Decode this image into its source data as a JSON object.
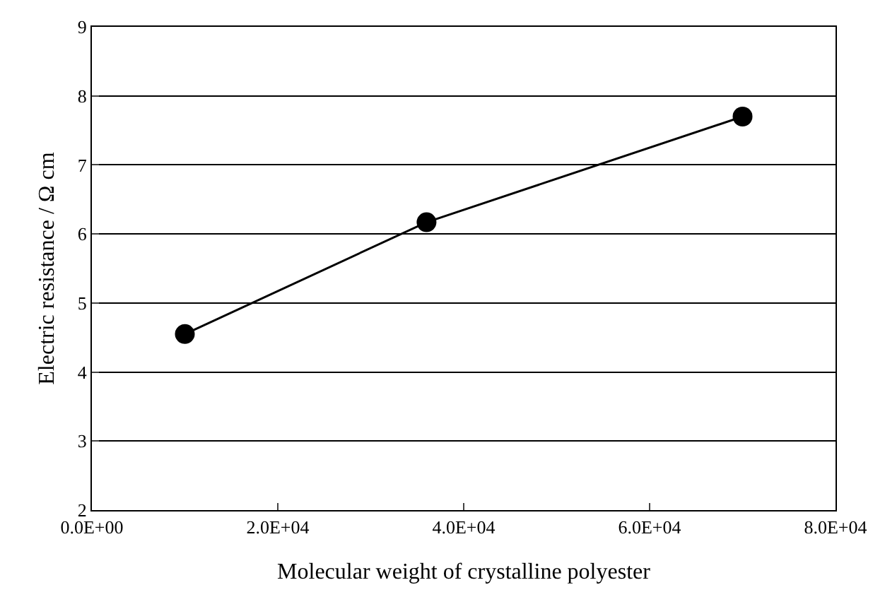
{
  "chart_data": {
    "type": "line",
    "xlabel": "Molecular weight of crystalline polyester",
    "ylabel": "Electric resistance / Ω cm",
    "x": [
      10000,
      36000,
      70000
    ],
    "series": [
      {
        "color": "#000000",
        "values": [
          4.55,
          6.17,
          7.7
        ]
      }
    ],
    "xlim": [
      0,
      80000
    ],
    "xticks": [
      {
        "value": 0,
        "label": "0.0E+00"
      },
      {
        "value": 20000,
        "label": "2.0E+04"
      },
      {
        "value": 40000,
        "label": "4.0E+04"
      },
      {
        "value": 60000,
        "label": "6.0E+04"
      },
      {
        "value": 80000,
        "label": "8.0E+04"
      }
    ],
    "ylim": [
      2,
      9
    ],
    "yticks": [
      2,
      3,
      4,
      5,
      6,
      7,
      8,
      9
    ],
    "grid": "y",
    "marker": "circle",
    "line_style": "solid"
  }
}
